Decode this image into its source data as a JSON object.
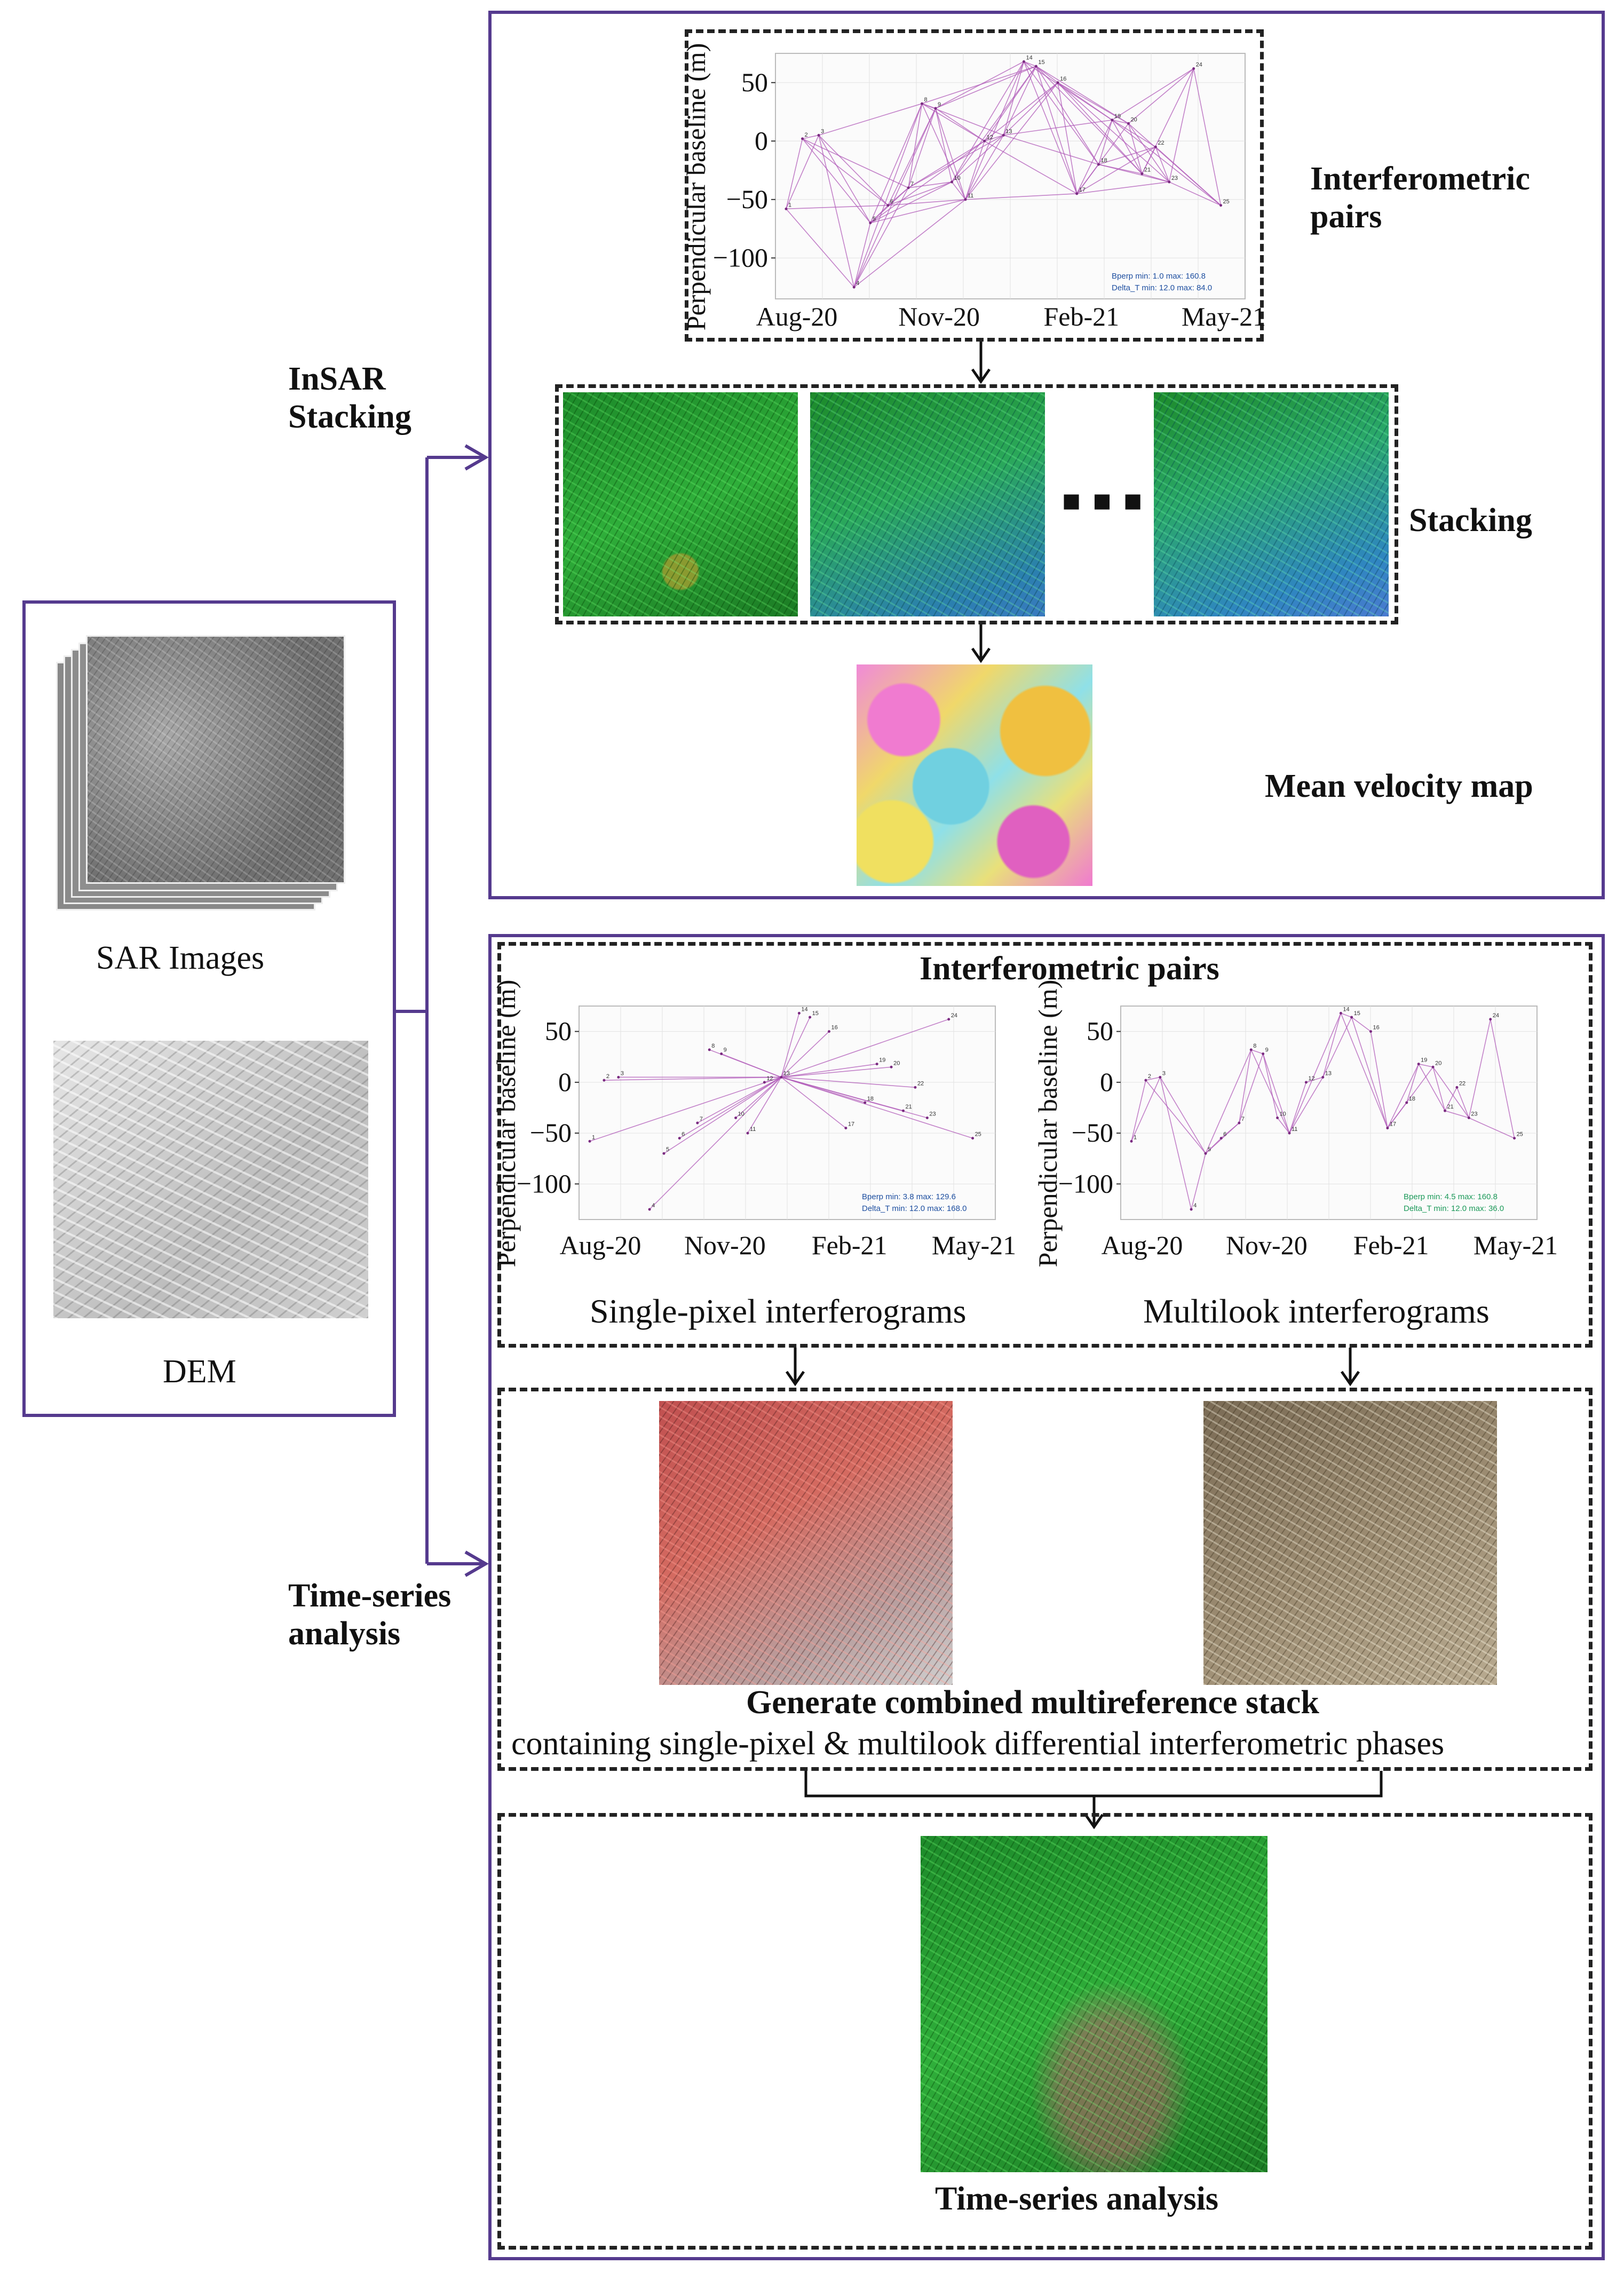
{
  "labels": {
    "insar_stacking": [
      "InSAR",
      "Stacking"
    ],
    "time_series_side": [
      "Time-series",
      "analysis"
    ],
    "interferometric_pairs_top": [
      "Interferometric",
      "pairs"
    ],
    "stacking": "Stacking",
    "mean_velocity_map": "Mean velocity map",
    "sar_images": "SAR Images",
    "dem": "DEM",
    "interferometric_pairs_bottom": "Interferometric pairs",
    "single_pixel": "Single-pixel interferograms",
    "multilook": "Multilook interferograms",
    "combined_title": "Generate combined multireference stack",
    "combined_subtitle": "containing single-pixel & multilook differential interferometric phases",
    "time_series_bottom": "Time-series analysis",
    "dots": "■ ■ ■"
  },
  "colors": {
    "frame": "#553a8e",
    "plot_line": "#b05ab8",
    "stats_blue": "#1e4fa0",
    "stats_green": "#1d9a5a"
  },
  "chart_data": [
    {
      "type": "scatter",
      "id": "baseline-plot-stacking",
      "xlabel": "",
      "ylabel": "Perpendicular baseline (m)",
      "x_tick_labels": [
        "Aug-20",
        "Nov-20",
        "Feb-21",
        "May-21"
      ],
      "y_ticks": [
        50,
        0,
        -50,
        -100
      ],
      "ylim": [
        -135,
        75
      ],
      "grid": true,
      "stats": [
        "Bperp    min:   1.0  max:  160.8",
        "Delta_T min:  12.0  max:   84.0"
      ],
      "stats_color": "blue",
      "line_mode": "network"
    },
    {
      "type": "scatter",
      "id": "baseline-plot-single-pixel",
      "xlabel": "",
      "ylabel": "Perpendicular baseline (m)",
      "x_tick_labels": [
        "Aug-20",
        "Nov-20",
        "Feb-21",
        "May-21"
      ],
      "y_ticks": [
        50,
        0,
        -50,
        -100
      ],
      "ylim": [
        -135,
        75
      ],
      "grid": true,
      "stats": [
        "Bperp    min:   3.8  max:  129.6",
        "Delta_T min:  12.0  max:  168.0"
      ],
      "stats_color": "blue",
      "line_mode": "star"
    },
    {
      "type": "scatter",
      "id": "baseline-plot-multilook",
      "xlabel": "",
      "ylabel": "Perpendicular baseline (m)",
      "x_tick_labels": [
        "Aug-20",
        "Nov-20",
        "Feb-21",
        "May-21"
      ],
      "y_ticks": [
        50,
        0,
        -50,
        -100
      ],
      "ylim": [
        -135,
        75
      ],
      "grid": true,
      "stats": [
        "Bperp    min:   4.5  max:  160.8",
        "Delta_T min:  12.0  max:   36.0"
      ],
      "stats_color": "green",
      "line_mode": "chain"
    }
  ],
  "acquisitions": {
    "note_units": "x = days after first acquisition index, y = perpendicular baseline (m)",
    "points": [
      {
        "n": "1",
        "x": 0,
        "y": -58
      },
      {
        "n": "2",
        "x": 12,
        "y": 2
      },
      {
        "n": "3",
        "x": 24,
        "y": 5
      },
      {
        "n": "4",
        "x": 50,
        "y": -125
      },
      {
        "n": "5",
        "x": 62,
        "y": -70
      },
      {
        "n": "6",
        "x": 75,
        "y": -55
      },
      {
        "n": "7",
        "x": 90,
        "y": -40
      },
      {
        "n": "8",
        "x": 100,
        "y": 32
      },
      {
        "n": "9",
        "x": 110,
        "y": 28
      },
      {
        "n": "10",
        "x": 122,
        "y": -35
      },
      {
        "n": "11",
        "x": 132,
        "y": -50
      },
      {
        "n": "12",
        "x": 146,
        "y": 0
      },
      {
        "n": "13",
        "x": 160,
        "y": 5
      },
      {
        "n": "14",
        "x": 175,
        "y": 68
      },
      {
        "n": "15",
        "x": 184,
        "y": 64
      },
      {
        "n": "16",
        "x": 200,
        "y": 50
      },
      {
        "n": "17",
        "x": 214,
        "y": -45
      },
      {
        "n": "18",
        "x": 230,
        "y": -20
      },
      {
        "n": "19",
        "x": 240,
        "y": 18
      },
      {
        "n": "20",
        "x": 252,
        "y": 15
      },
      {
        "n": "21",
        "x": 262,
        "y": -28
      },
      {
        "n": "22",
        "x": 272,
        "y": -5
      },
      {
        "n": "23",
        "x": 282,
        "y": -35
      },
      {
        "n": "24",
        "x": 300,
        "y": 62
      },
      {
        "n": "25",
        "x": 320,
        "y": -55
      }
    ]
  }
}
